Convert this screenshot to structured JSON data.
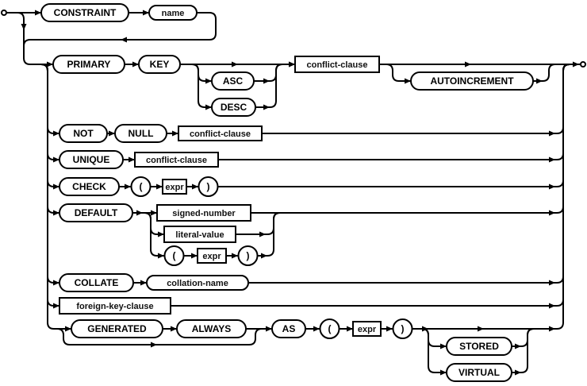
{
  "diagram": {
    "line_color": "#000000",
    "background": "#ffffff",
    "nodes": [
      {
        "label": "CONSTRAINT",
        "kind": "terminal"
      },
      {
        "label": "name",
        "kind": "terminal-lower"
      },
      {
        "label": "PRIMARY",
        "kind": "terminal"
      },
      {
        "label": "KEY",
        "kind": "terminal"
      },
      {
        "label": "ASC",
        "kind": "terminal"
      },
      {
        "label": "DESC",
        "kind": "terminal"
      },
      {
        "label": "conflict-clause",
        "kind": "nonterminal"
      },
      {
        "label": "AUTOINCREMENT",
        "kind": "terminal"
      },
      {
        "label": "NOT",
        "kind": "terminal"
      },
      {
        "label": "NULL",
        "kind": "terminal"
      },
      {
        "label": "conflict-clause",
        "kind": "nonterminal"
      },
      {
        "label": "UNIQUE",
        "kind": "terminal"
      },
      {
        "label": "conflict-clause",
        "kind": "nonterminal"
      },
      {
        "label": "CHECK",
        "kind": "terminal"
      },
      {
        "label": "(",
        "kind": "symbol"
      },
      {
        "label": "expr",
        "kind": "nonterminal"
      },
      {
        "label": ")",
        "kind": "symbol"
      },
      {
        "label": "DEFAULT",
        "kind": "terminal"
      },
      {
        "label": "signed-number",
        "kind": "nonterminal"
      },
      {
        "label": "literal-value",
        "kind": "nonterminal"
      },
      {
        "label": "(",
        "kind": "symbol"
      },
      {
        "label": "expr",
        "kind": "nonterminal"
      },
      {
        "label": ")",
        "kind": "symbol"
      },
      {
        "label": "COLLATE",
        "kind": "terminal"
      },
      {
        "label": "collation-name",
        "kind": "terminal-lower"
      },
      {
        "label": "foreign-key-clause",
        "kind": "nonterminal"
      },
      {
        "label": "GENERATED",
        "kind": "terminal"
      },
      {
        "label": "ALWAYS",
        "kind": "terminal"
      },
      {
        "label": "AS",
        "kind": "terminal"
      },
      {
        "label": "(",
        "kind": "symbol"
      },
      {
        "label": "expr",
        "kind": "nonterminal"
      },
      {
        "label": ")",
        "kind": "symbol"
      },
      {
        "label": "STORED",
        "kind": "terminal"
      },
      {
        "label": "VIRTUAL",
        "kind": "terminal"
      }
    ]
  }
}
